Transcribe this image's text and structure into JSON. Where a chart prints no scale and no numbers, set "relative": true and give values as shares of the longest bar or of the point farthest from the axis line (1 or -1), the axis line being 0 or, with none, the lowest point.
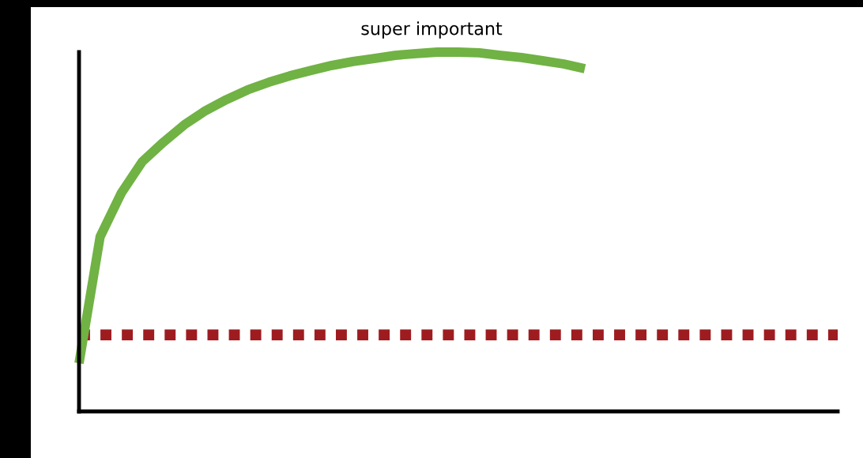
{
  "chart_data": {
    "type": "line",
    "title": "super important",
    "relative": true,
    "categories": [
      null,
      null,
      null,
      null,
      null,
      null,
      null,
      null,
      null,
      null,
      null,
      null,
      null,
      null,
      null,
      null,
      null,
      null,
      null,
      null,
      null,
      null,
      null,
      null,
      null,
      null,
      null,
      null,
      null,
      null,
      null,
      null,
      null,
      null,
      null,
      null,
      null
    ],
    "series": [
      {
        "color": "#70b244",
        "line_style": "solid",
        "values": [
          0.134,
          0.486,
          0.607,
          0.695,
          0.749,
          0.798,
          0.837,
          0.868,
          0.895,
          0.916,
          0.934,
          0.949,
          0.963,
          0.974,
          0.982,
          0.991,
          0.996,
          1.0,
          1.0,
          0.998,
          0.991,
          0.985,
          0.976,
          0.967,
          0.954,
          null,
          null,
          null,
          null,
          null,
          null,
          null,
          null,
          null,
          null,
          null,
          null
        ]
      },
      {
        "color": "#9e1c20",
        "line_style": "dotted",
        "values": [
          0.213,
          0.213,
          0.213,
          0.213,
          0.213,
          0.213,
          0.213,
          0.213,
          0.213,
          0.213,
          0.213,
          0.213,
          0.213,
          0.213,
          0.213,
          0.213,
          0.213,
          0.213,
          0.213,
          0.213,
          0.213,
          0.213,
          0.213,
          0.213,
          0.213,
          0.213,
          0.213,
          0.213,
          0.213,
          0.213,
          0.213,
          0.213,
          0.213,
          0.213,
          0.213,
          0.213,
          0.213
        ]
      }
    ],
    "legend": false
  }
}
